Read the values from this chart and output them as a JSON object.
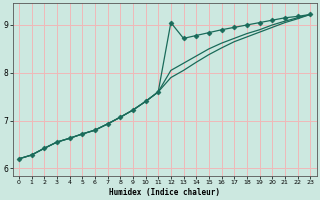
{
  "xlabel": "Humidex (Indice chaleur)",
  "bg_color": "#cce8e0",
  "grid_color": "#f0b8b8",
  "line_color": "#1a6b5a",
  "xlim_min": -0.5,
  "xlim_max": 23.5,
  "ylim_min": 5.85,
  "ylim_max": 9.45,
  "yticks": [
    6,
    7,
    8,
    9
  ],
  "xticks": [
    0,
    1,
    2,
    3,
    4,
    5,
    6,
    7,
    8,
    9,
    10,
    11,
    12,
    13,
    14,
    15,
    16,
    17,
    18,
    19,
    20,
    21,
    22,
    23
  ],
  "series": [
    {
      "x": [
        0,
        1,
        2,
        3,
        4,
        5,
        6,
        7,
        8,
        9,
        10,
        11,
        12,
        13,
        14,
        15,
        16,
        17,
        18,
        19,
        20,
        21,
        22,
        23
      ],
      "y": [
        6.2,
        6.28,
        6.42,
        6.55,
        6.63,
        6.72,
        6.8,
        6.93,
        7.07,
        7.22,
        7.4,
        7.6,
        9.05,
        8.72,
        8.78,
        8.84,
        8.9,
        8.95,
        9.0,
        9.05,
        9.1,
        9.15,
        9.18,
        9.22
      ],
      "marker": "D",
      "markersize": 2.5
    },
    {
      "x": [
        0,
        1,
        2,
        3,
        4,
        5,
        6,
        7,
        8,
        9,
        10,
        11,
        12,
        13,
        14,
        15,
        16,
        17,
        18,
        19,
        20,
        21,
        22,
        23
      ],
      "y": [
        6.2,
        6.28,
        6.42,
        6.55,
        6.63,
        6.72,
        6.8,
        6.93,
        7.07,
        7.22,
        7.4,
        7.6,
        8.05,
        8.2,
        8.35,
        8.5,
        8.62,
        8.72,
        8.82,
        8.9,
        9.0,
        9.08,
        9.15,
        9.22
      ],
      "marker": null
    },
    {
      "x": [
        0,
        1,
        2,
        3,
        4,
        5,
        6,
        7,
        8,
        9,
        10,
        11,
        12,
        13,
        14,
        15,
        16,
        17,
        18,
        19,
        20,
        21,
        22,
        23
      ],
      "y": [
        6.2,
        6.28,
        6.42,
        6.55,
        6.63,
        6.72,
        6.8,
        6.93,
        7.07,
        7.22,
        7.4,
        7.6,
        7.9,
        8.05,
        8.22,
        8.38,
        8.52,
        8.65,
        8.75,
        8.85,
        8.95,
        9.05,
        9.13,
        9.22
      ],
      "marker": null
    }
  ]
}
